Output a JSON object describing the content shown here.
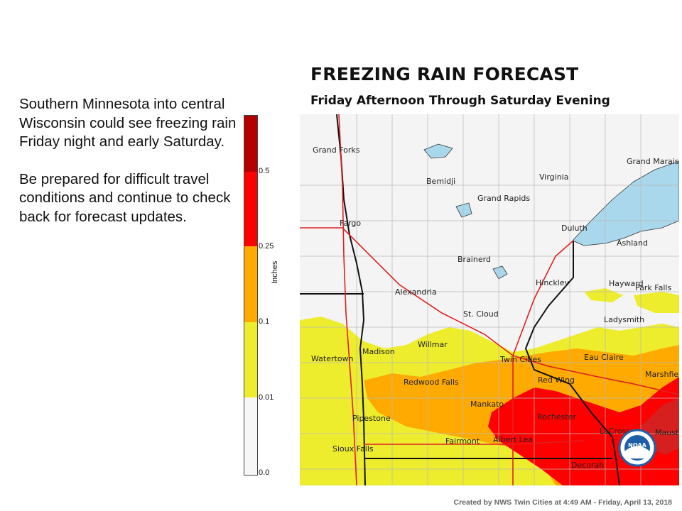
{
  "title": "FREEZING RAIN FORECAST",
  "subtitle": "Friday Afternoon Through Saturday Evening",
  "description": [
    "Southern Minnesota into central Wisconsin could see freezing rain Friday night and early Saturday.",
    "Be prepared for difficult travel conditions and continue to check back for forecast updates."
  ],
  "legend": {
    "unit": "Inches",
    "labels": [
      "0.5",
      "0.25",
      "0.1",
      "0.01",
      "0.0"
    ],
    "colors": [
      "#b30000",
      "#d61f1f",
      "#ff0000",
      "#ffaa00",
      "#eded2e",
      "#f7f7f7"
    ]
  },
  "cities": [
    "Grand Forks",
    "Bemidji",
    "Virginia",
    "Grand Marais",
    "Grand Rapids",
    "Fargo",
    "Duluth",
    "Ashland",
    "Brainerd",
    "Hinckley",
    "Hayward",
    "Park Falls",
    "Alexandria",
    "St. Cloud",
    "Ladysmith",
    "Watertown",
    "Madison",
    "Willmar",
    "Twin Cities",
    "Eau Claire",
    "Redwood Falls",
    "Red Wing",
    "Marshfield",
    "Mankato",
    "Rochester",
    "Pipestone",
    "LaCrosse",
    "Mauston",
    "Fairmont",
    "Albert Lea",
    "Sioux Falls",
    "Decorah"
  ],
  "credit": "Created by NWS Twin Cities at 4:49 AM - Friday, April 13, 2018",
  "logo_text": "NOAA"
}
